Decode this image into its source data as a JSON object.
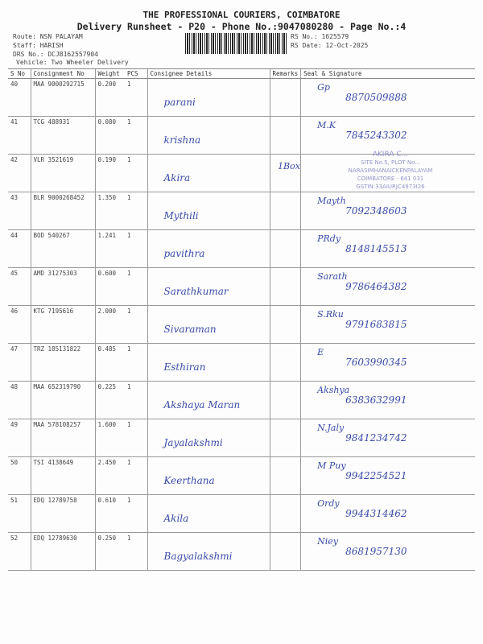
{
  "header": {
    "company": "THE PROFESSIONAL COURIERS, COIMBATORE",
    "subtitle": "Delivery Runsheet - P20 - Phone No.:9047080280 - Page No.:4",
    "route": "Route: NSN PALAYAM",
    "staff": "Staff: HARISH",
    "drs_no": "DRS No.: DCJB162557904",
    "vehicle": "Vehicle: Two Wheeler Delivery",
    "rs_no": "RS No.: 1625579",
    "rs_date": "RS Date: 12-Oct-2025"
  },
  "table": {
    "columns": [
      "S No",
      "Consignment No",
      "Weight",
      "PCS",
      "Consignee Details",
      "Remarks",
      "Seal & Signature"
    ],
    "rows": [
      {
        "sno": "40",
        "cn": "MAA 9000292715",
        "wt": "0.200",
        "pcs": "1",
        "name": "parani",
        "sig": "Gp",
        "phone": "8870509888"
      },
      {
        "sno": "41",
        "cn": "TCG 488931",
        "wt": "0.080",
        "pcs": "1",
        "name": "krishna",
        "sig": "M.K",
        "phone": "7845243302"
      },
      {
        "sno": "42",
        "cn": "VLR 3521619",
        "wt": "0.190",
        "pcs": "1",
        "name": "Akira",
        "sig": "",
        "phone": ""
      },
      {
        "sno": "43",
        "cn": "BLR 9000268452",
        "wt": "1.350",
        "pcs": "1",
        "name": "Mythili",
        "sig": "Mayth",
        "phone": "7092348603"
      },
      {
        "sno": "44",
        "cn": "BOD 540267",
        "wt": "1.241",
        "pcs": "1",
        "name": "pavithra",
        "sig": "PRdy",
        "phone": "8148145513"
      },
      {
        "sno": "45",
        "cn": "AMD 31275303",
        "wt": "0.600",
        "pcs": "1",
        "name": "Sarathkumar",
        "sig": "Sarath",
        "phone": "9786464382"
      },
      {
        "sno": "46",
        "cn": "KTG 7195616",
        "wt": "2.000",
        "pcs": "1",
        "name": "Sivaraman",
        "sig": "S.Rku",
        "phone": "9791683815"
      },
      {
        "sno": "47",
        "cn": "TRZ 185131822",
        "wt": "0.485",
        "pcs": "1",
        "name": "Esthiran",
        "sig": "E",
        "phone": "7603990345"
      },
      {
        "sno": "48",
        "cn": "MAA 652319790",
        "wt": "0.225",
        "pcs": "1",
        "name": "Akshaya Maran",
        "sig": "Akshya",
        "phone": "6383632991"
      },
      {
        "sno": "49",
        "cn": "MAA 578108257",
        "wt": "1.600",
        "pcs": "1",
        "name": "Jayalakshmi",
        "sig": "N.Jaly",
        "phone": "9841234742"
      },
      {
        "sno": "50",
        "cn": "TSI 4138649",
        "wt": "2.450",
        "pcs": "1",
        "name": "Keerthana",
        "sig": "M Puy",
        "phone": "9942254521"
      },
      {
        "sno": "51",
        "cn": "EDQ 12789758",
        "wt": "0.610",
        "pcs": "1",
        "name": "Akila",
        "sig": "Ordy",
        "phone": "9944314462"
      },
      {
        "sno": "52",
        "cn": "EDQ 12789630",
        "wt": "0.250",
        "pcs": "1",
        "name": "Bagyalakshmi",
        "sig": "Niey",
        "phone": "8681957130"
      }
    ]
  },
  "remark_42": "1Box",
  "stamp": {
    "line1": "AKIRA C...",
    "line2": "SITE No.5, PLOT No...",
    "line3": "NARASIMHANAICKENPALAYAM",
    "line4": "COIMBATORE - 641 031",
    "line5": "GSTIN:33AIURJC4973I26"
  },
  "colors": {
    "ink": "#3a4aa8",
    "stamp": "#7a7ac0"
  }
}
